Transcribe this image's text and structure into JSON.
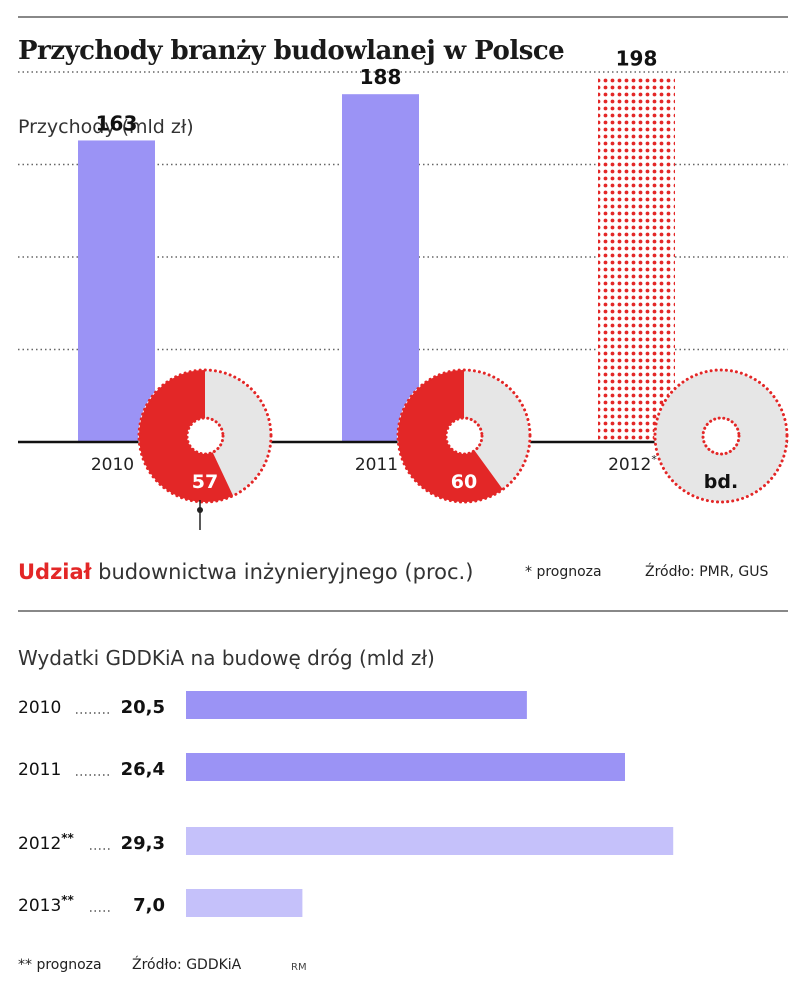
{
  "header": {
    "title": "Przychody branży budowlanej w Polsce"
  },
  "colors": {
    "bar": "#9b93f5",
    "bar_light": "#c5c1fa",
    "accent_red": "#e32727",
    "pie_grey": "#e6e6e6"
  },
  "chart_data": [
    {
      "type": "bar",
      "ylabel": "Przychody (mld zł)",
      "categories": [
        "2010",
        "2011",
        "2012*"
      ],
      "values": [
        163,
        188,
        198
      ],
      "data_labels": [
        "163",
        "188",
        "198"
      ],
      "forecast": [
        false,
        false,
        true
      ],
      "ylim": [
        0,
        200
      ],
      "grid": true,
      "share_pies": {
        "label_strong": "Udział",
        "label_rest": " budownictwa inżynieryjnego (proc.)",
        "values": [
          57,
          60,
          null
        ],
        "value_labels": [
          "57",
          "60",
          "bd."
        ]
      },
      "footnote": "* prognoza",
      "source": "Źródło: PMR, GUS"
    },
    {
      "type": "bar",
      "orientation": "horizontal",
      "title": "Wydatki GDDKiA na budowę dróg (mld zł)",
      "categories": [
        "2010",
        "2011",
        "2012**",
        "2013**"
      ],
      "values": [
        20.5,
        26.4,
        29.3,
        7.0
      ],
      "data_labels": [
        "20,5",
        "26,4",
        "29,3",
        "7,0"
      ],
      "forecast": [
        false,
        false,
        true,
        true
      ],
      "xlim": [
        0,
        35
      ],
      "footnote": "** prognoza",
      "source": "Źródło: GDDKiA",
      "author": "RM"
    }
  ]
}
